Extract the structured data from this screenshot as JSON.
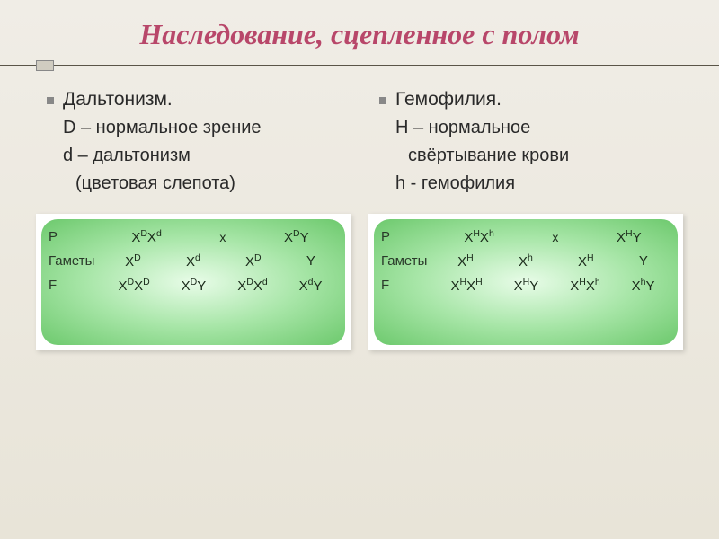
{
  "title": "Наследование, сцепленное с полом",
  "left": {
    "heading": "Дальтонизм.",
    "line1": "D – нормальное зрение",
    "line2": "d – дальтонизм",
    "line3": "(цветовая слепота)",
    "diagram": {
      "rowLabels": [
        "P",
        "Гаметы",
        "F"
      ],
      "p_female": "XDXd",
      "p_cross": "x",
      "p_male": "XDY",
      "gametes": [
        "XD",
        "Xd",
        "XD",
        "Y"
      ],
      "f": [
        "XDXD",
        "XDY",
        "XDXd",
        "XdY"
      ]
    }
  },
  "right": {
    "heading": "Гемофилия.",
    "line1": "H – нормальное",
    "line2": "свёртывание крови",
    "line3": "h - гемофилия",
    "diagram": {
      "rowLabels": [
        "P",
        "Гаметы",
        "F"
      ],
      "p_female": "XHXh",
      "p_cross": "x",
      "p_male": "XHY",
      "gametes": [
        "XH",
        "Xh",
        "XH",
        "Y"
      ],
      "f": [
        "XHXH",
        "XHY",
        "XHXh",
        "XhY"
      ]
    }
  }
}
